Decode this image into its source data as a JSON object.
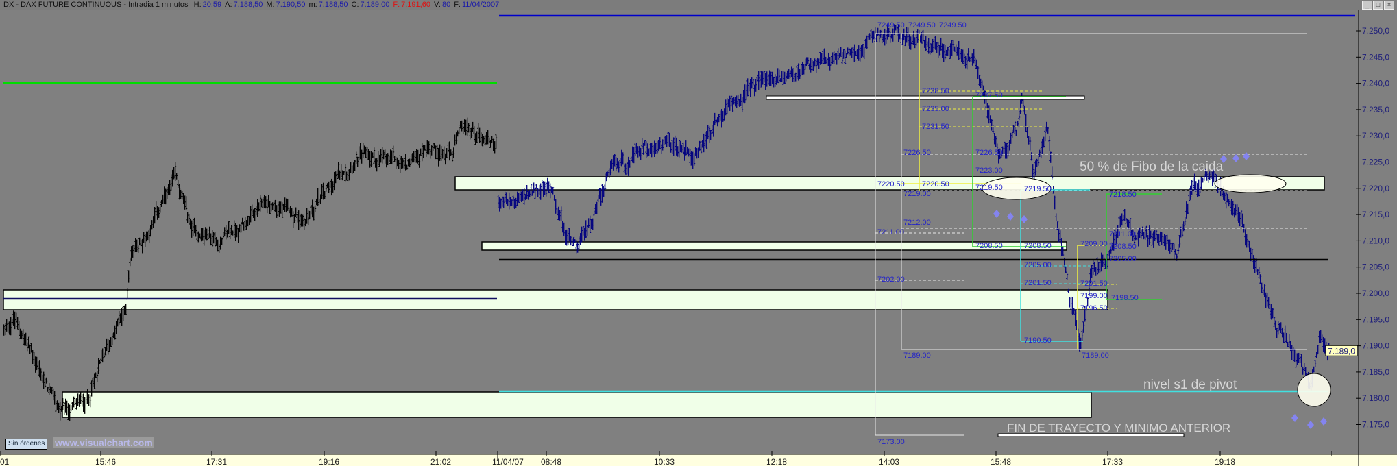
{
  "header": {
    "title": "DX - DAX FUTURE CONTINUOUS - Intradia 1 minutos",
    "fields": [
      {
        "label": "H:",
        "value": "20:59"
      },
      {
        "label": "A:",
        "value": "7.188,50"
      },
      {
        "label": "M:",
        "value": "7.190,50"
      },
      {
        "label": "m:",
        "value": "7.188,50"
      },
      {
        "label": "C:",
        "value": "7.189,00"
      },
      {
        "label": "F:",
        "value": "7.191,60",
        "color": "#e01010"
      },
      {
        "label": "V:",
        "value": "80"
      },
      {
        "label": "F:",
        "value": "11/04/2007"
      }
    ],
    "window_buttons": [
      "_",
      "□",
      "×"
    ]
  },
  "footer": {
    "orders_button": "Sin órdenes",
    "brand": "www.visualchart.com"
  },
  "annotations": {
    "fibo_note": "50 % de Fibo de la caida",
    "pivot_note": "nivel s1 de pivot",
    "end_note": "FIN DE TRAYECTO Y MINIMO ANTERIOR"
  },
  "fib_labels": [
    "7249.50",
    "7249.50",
    "7249.50",
    "7238.50",
    "7237.50",
    "7235.00",
    "7231.50",
    "7226.50",
    "7226.50",
    "7223.00",
    "7220.50",
    "7220.50",
    "7219.00",
    "7219.50",
    "7219.50",
    "7218.50",
    "7212.00",
    "7211.00",
    "7208.50",
    "7208.50",
    "7209.00",
    "7211.00",
    "7208.50",
    "7205.00",
    "7205.00",
    "7202.00",
    "7201.50",
    "7201.50",
    "7199.00",
    "7198.50",
    "7196.50",
    "7190.50",
    "7189.00",
    "7189.00",
    "7173.00"
  ],
  "colors": {
    "background": "#808080",
    "day1_bars": "#000000",
    "day2_bars": "#000080",
    "zone_fill": "#f0ffe8",
    "pivot_line": "#40e0e0",
    "top_line": "#0000cc",
    "green_line": "#00dd00",
    "axis_bg": "#ffffe0"
  },
  "chart_data": {
    "type": "bar",
    "instrument": "DX - DAX FUTURE CONTINUOUS",
    "interval": "1 minutos",
    "y_ticks": [
      "7.250,0",
      "7.245,0",
      "7.240,0",
      "7.235,0",
      "7.230,0",
      "7.225,0",
      "7.220,0",
      "7.215,0",
      "7.210,0",
      "7.205,0",
      "7.200,0",
      "7.195,0",
      "7.190,0",
      "7.185,0",
      "7.180,0",
      "7.175,0"
    ],
    "ylim": [
      7171,
      7253
    ],
    "last_price_tag": "7.189,0",
    "x_ticks": [
      "01",
      "15:46",
      "17:31",
      "19:16",
      "21:02",
      "11/04/07",
      "08:48",
      "10:33",
      "12:18",
      "14:03",
      "15:48",
      "17:33",
      "19:18"
    ],
    "sessions": [
      {
        "day": 1,
        "path": [
          [
            "14:15",
            7193
          ],
          [
            "14:25",
            7195
          ],
          [
            "14:45",
            7187
          ],
          [
            "15:00",
            7180
          ],
          [
            "15:10",
            7177
          ],
          [
            "15:25",
            7178.5
          ],
          [
            "15:33",
            7180
          ],
          [
            "15:50",
            7188
          ],
          [
            "16:00",
            7193
          ],
          [
            "16:10",
            7197
          ],
          [
            "16:14",
            7208
          ],
          [
            "16:25",
            7210
          ],
          [
            "16:56",
            7221.5
          ],
          [
            "17:11",
            7212
          ],
          [
            "17:40",
            7210
          ],
          [
            "18:23",
            7217
          ],
          [
            "18:56",
            7214
          ],
          [
            "19:25",
            7221
          ],
          [
            "19:46",
            7226.5
          ],
          [
            "20:33",
            7224
          ],
          [
            "20:54",
            7229
          ],
          [
            "21:15",
            7226
          ],
          [
            "21:26",
            7231
          ],
          [
            "21:58",
            7229
          ]
        ]
      },
      {
        "day": 2,
        "path": [
          [
            "08:03",
            7217.8
          ],
          [
            "08:20",
            7217
          ],
          [
            "08:54",
            7220
          ],
          [
            "09:07",
            7211
          ],
          [
            "09:19",
            7210
          ],
          [
            "09:53",
            7224
          ],
          [
            "10:18",
            7227
          ],
          [
            "11:08",
            7227
          ],
          [
            "11:41",
            7236
          ],
          [
            "12:06",
            7240
          ],
          [
            "12:48",
            7242.6
          ],
          [
            "13:21",
            7243.4
          ],
          [
            "13:38",
            7246.6
          ],
          [
            "14:05",
            7249.5
          ],
          [
            "14:24",
            7249
          ],
          [
            "14:53",
            7247.4
          ],
          [
            "15:26",
            7244
          ],
          [
            "15:38",
            7237.8
          ],
          [
            "15:50",
            7224
          ],
          [
            "16:07",
            7231.4
          ],
          [
            "16:13",
            7237
          ],
          [
            "16:23",
            7223
          ],
          [
            "16:36",
            7233
          ],
          [
            "16:44",
            7217
          ],
          [
            "16:57",
            7200
          ],
          [
            "17:07",
            7190
          ],
          [
            "17:18",
            7205
          ],
          [
            "17:30",
            7207
          ],
          [
            "17:47",
            7214
          ],
          [
            "18:04",
            7210
          ],
          [
            "18:37",
            7209
          ],
          [
            "18:50",
            7221
          ],
          [
            "19:11",
            7221.6
          ],
          [
            "19:36",
            7213.8
          ],
          [
            "19:57",
            7200.6
          ],
          [
            "20:18",
            7191.3
          ],
          [
            "20:43",
            7181.5
          ],
          [
            "20:51",
            7191
          ],
          [
            "20:59",
            7189
          ]
        ]
      }
    ]
  }
}
